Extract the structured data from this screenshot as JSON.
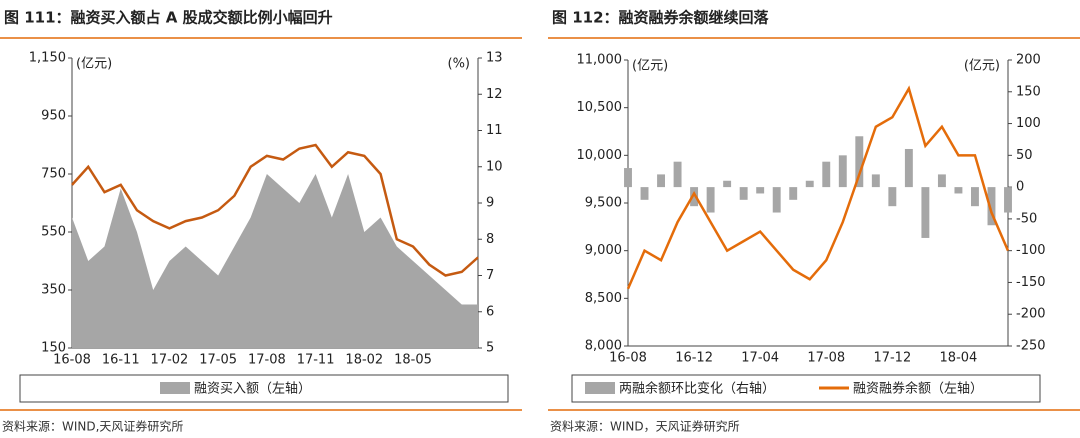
{
  "chart_data": [
    {
      "type": "combo",
      "title": "图 111：融资买入额占 A 股成交额比例小幅回升",
      "ylabel": "(亿元)",
      "y2label": "(%)",
      "source": "资料来源：WIND,天风证券研究所",
      "categories": [
        "16-08",
        null,
        null,
        "16-11",
        null,
        null,
        "17-02",
        null,
        null,
        "17-05",
        null,
        null,
        "17-08",
        null,
        null,
        "17-11",
        null,
        null,
        "18-02",
        null,
        null,
        "18-05",
        null,
        null,
        null,
        null
      ],
      "ylim": [
        150,
        1150
      ],
      "yticks": [
        150,
        350,
        550,
        750,
        950,
        {
          "value": 1150,
          "label": "1,150"
        }
      ],
      "y2lim": [
        5,
        13
      ],
      "y2ticks": [
        5,
        6,
        7,
        8,
        9,
        10,
        11,
        12,
        13
      ],
      "series": [
        {
          "name": "融资买入额（左轴）",
          "type": "area",
          "color": "#a6a6a6",
          "values": [
            600,
            450,
            500,
            700,
            550,
            350,
            450,
            500,
            450,
            400,
            500,
            600,
            750,
            700,
            650,
            750,
            600,
            750,
            550,
            600,
            500,
            450,
            400,
            350,
            300,
            300
          ]
        },
        {
          "type": "line",
          "axis": "y2",
          "color": "#c55a11",
          "values": [
            9.5,
            10,
            9.3,
            9.5,
            8.8,
            8.5,
            8.3,
            8.5,
            8.6,
            8.8,
            9.2,
            10.0,
            10.3,
            10.2,
            10.5,
            10.6,
            10.0,
            10.4,
            10.3,
            9.8,
            8.0,
            7.8,
            7.3,
            7.0,
            7.1,
            7.5
          ]
        }
      ]
    },
    {
      "type": "combo",
      "title": "图 112：融资融券余额继续回落",
      "ylabel": "(亿元)",
      "y2label": "(亿元)",
      "source": "资料来源：WIND，天风证券研究所",
      "categories": [
        "16-08",
        null,
        null,
        null,
        "16-12",
        null,
        null,
        null,
        "17-04",
        null,
        null,
        null,
        "17-08",
        null,
        null,
        null,
        "17-12",
        null,
        null,
        null,
        "18-04",
        null,
        null,
        null
      ],
      "ylim": [
        8000,
        11000
      ],
      "yticks": [
        {
          "value": 8000,
          "label": "8,000"
        },
        {
          "value": 8500,
          "label": "8,500"
        },
        {
          "value": 9000,
          "label": "9,000"
        },
        {
          "value": 9500,
          "label": "9,500"
        },
        {
          "value": 10000,
          "label": "10,000"
        },
        {
          "value": 10500,
          "label": "10,500"
        },
        {
          "value": 11000,
          "label": "11,000"
        }
      ],
      "y2lim": [
        -250,
        200
      ],
      "y2ticks": [
        -250,
        -200,
        -150,
        -100,
        -50,
        0,
        50,
        100,
        150,
        200
      ],
      "series": [
        {
          "name": "两融余额环比变化（右轴）",
          "type": "bar",
          "axis": "y2",
          "color": "#a6a6a6",
          "values": [
            30,
            -20,
            20,
            40,
            -30,
            -40,
            10,
            -20,
            -10,
            -40,
            -20,
            10,
            40,
            50,
            80,
            20,
            -30,
            60,
            -80,
            20,
            -10,
            -30,
            -60,
            -40
          ]
        },
        {
          "name": "融资融券余额（左轴）",
          "type": "line",
          "color": "#e46c0a",
          "values": [
            8600,
            9000,
            8900,
            9300,
            9600,
            9300,
            9000,
            9100,
            9200,
            9000,
            8800,
            8700,
            8900,
            9300,
            9800,
            10300,
            10400,
            10700,
            10100,
            10300,
            10000,
            10000,
            9400,
            9000
          ]
        }
      ]
    }
  ]
}
